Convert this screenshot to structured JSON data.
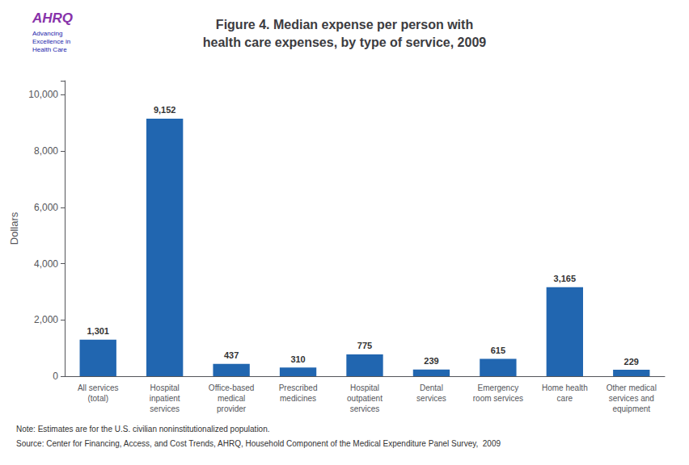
{
  "chart_data": {
    "type": "bar",
    "title": "Figure 4. Median expense per person with\nhealth care expenses, by type of service, 2009",
    "categories": [
      "All services\n(total)",
      "Hospital\ninpatient\nservices",
      "Office-based\nmedical\nprovider",
      "Prescribed\nmedicines",
      "Hospital\noutpatient\nservices",
      "Dental\nservices",
      "Emergency\nroom services",
      "Home health\ncare",
      "Other medical\nservices and\nequipment"
    ],
    "values": [
      1301,
      9152,
      437,
      310,
      775,
      239,
      615,
      3165,
      229
    ],
    "value_labels": [
      "1,301",
      "9,152",
      "437",
      "310",
      "775",
      "239",
      "615",
      "3,165",
      "229"
    ],
    "data_labels": true,
    "color": "#2166b0",
    "ylabel": "Dollars",
    "ylim": [
      0,
      10500
    ],
    "yticks": [
      0,
      {
        "value": 2000,
        "label": "2,000"
      },
      {
        "value": 4000,
        "label": "4,000"
      },
      {
        "value": 6000,
        "label": "6,000"
      },
      {
        "value": 8000,
        "label": "8,000"
      },
      {
        "value": 10000,
        "label": "10,000"
      }
    ],
    "grid": false,
    "annotations": [
      "AHRQ",
      "Advancing\nExcellence in\nHealth Care",
      "Note: Estimates are for the U.S. civilian noninstitutionalized population.",
      "Source: Center for Financing, Access, and Cost Trends, AHRQ, Household Component of the Medical Expenditure Panel Survey,  2009"
    ]
  }
}
